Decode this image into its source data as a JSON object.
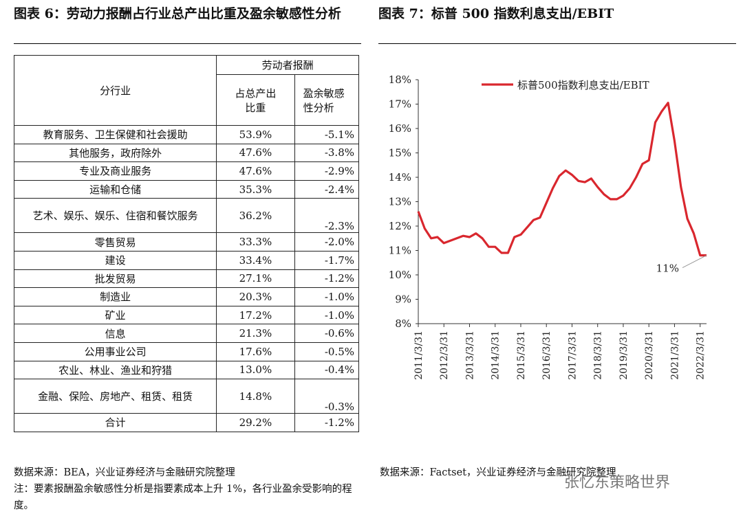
{
  "left_figure": {
    "title": "图表 6：劳动力报酬占行业总产出比重及盈余敏感性分析",
    "table": {
      "col_industry": "分行业",
      "group_header": "劳动者报酬",
      "col_share": "占总产出比重",
      "col_sensitivity": "盈余敏感性分析",
      "rows": [
        {
          "industry": "教育服务、卫生保健和社会援助",
          "share": "53.9%",
          "sensitivity": "-5.1%"
        },
        {
          "industry": "其他服务，政府除外",
          "share": "47.6%",
          "sensitivity": "-3.8%"
        },
        {
          "industry": "专业及商业服务",
          "share": "47.6%",
          "sensitivity": "-2.9%"
        },
        {
          "industry": "运输和仓储",
          "share": "35.3%",
          "sensitivity": "-2.4%"
        },
        {
          "industry": "艺术、娱乐、娱乐、住宿和餐饮服务",
          "share": "36.2%",
          "sensitivity": "-2.3%"
        },
        {
          "industry": "零售贸易",
          "share": "33.3%",
          "sensitivity": "-2.0%"
        },
        {
          "industry": "建设",
          "share": "33.4%",
          "sensitivity": "-1.7%"
        },
        {
          "industry": "批发贸易",
          "share": "27.1%",
          "sensitivity": "-1.2%"
        },
        {
          "industry": "制造业",
          "share": "20.3%",
          "sensitivity": "-1.0%"
        },
        {
          "industry": "矿业",
          "share": "17.2%",
          "sensitivity": "-1.0%"
        },
        {
          "industry": "信息",
          "share": "21.3%",
          "sensitivity": "-0.6%"
        },
        {
          "industry": "公用事业公司",
          "share": "17.6%",
          "sensitivity": "-0.5%"
        },
        {
          "industry": "农业、林业、渔业和狩猎",
          "share": "13.0%",
          "sensitivity": "-0.4%"
        },
        {
          "industry": "金融、保险、房地产、租赁、租赁",
          "share": "14.8%",
          "sensitivity": "-0.3%"
        },
        {
          "industry": "合计",
          "share": "29.2%",
          "sensitivity": "-1.2%"
        }
      ]
    },
    "source": "数据来源：BEA，兴业证券经济与金融研究院整理",
    "note": "注：要素报酬盈余敏感性分析是指要素成本上升 1%，各行业盈余受影响的程度。"
  },
  "right_figure": {
    "title": "图表 7：标普 500 指数利息支出/EBIT",
    "source": "数据来源：Factset，兴业证券经济与金融研究院整理"
  },
  "watermark": "张忆东策略世界",
  "chart_data": {
    "type": "line",
    "title": "",
    "legend": [
      "标普500指数利息支出/EBIT"
    ],
    "legend_position": "top-right",
    "xlabel": "",
    "ylabel": "",
    "ylim": [
      8,
      18
    ],
    "yticks": [
      "8%",
      "9%",
      "10%",
      "11%",
      "12%",
      "13%",
      "14%",
      "15%",
      "16%",
      "17%",
      "18%"
    ],
    "xticks": [
      "2011/3/31",
      "2012/3/31",
      "2013/3/31",
      "2014/3/31",
      "2015/3/31",
      "2016/3/31",
      "2017/3/31",
      "2018/3/31",
      "2019/3/31",
      "2020/3/31",
      "2021/3/31",
      "2022/3/31"
    ],
    "x_start": 2011.0,
    "x_end": 2022.25,
    "series": [
      {
        "name": "标普500指数利息支出/EBIT",
        "color": "#d9272e",
        "x": [
          2011.0,
          2011.25,
          2011.5,
          2011.75,
          2012.0,
          2012.25,
          2012.5,
          2012.75,
          2013.0,
          2013.25,
          2013.5,
          2013.75,
          2014.0,
          2014.25,
          2014.5,
          2014.75,
          2015.0,
          2015.25,
          2015.5,
          2015.75,
          2016.0,
          2016.25,
          2016.5,
          2016.75,
          2017.0,
          2017.25,
          2017.5,
          2017.75,
          2018.0,
          2018.25,
          2018.5,
          2018.75,
          2019.0,
          2019.25,
          2019.5,
          2019.75,
          2020.0,
          2020.25,
          2020.5,
          2020.75,
          2021.0,
          2021.25,
          2021.5,
          2021.75,
          2022.0,
          2022.25
        ],
        "values": [
          12.6,
          11.9,
          11.5,
          11.55,
          11.3,
          11.4,
          11.5,
          11.6,
          11.55,
          11.7,
          11.5,
          11.15,
          11.15,
          10.9,
          10.9,
          11.55,
          11.65,
          11.95,
          12.25,
          12.35,
          12.95,
          13.55,
          14.05,
          14.28,
          14.1,
          13.85,
          13.8,
          13.95,
          13.6,
          13.3,
          13.1,
          13.1,
          13.25,
          13.55,
          14.0,
          14.55,
          14.7,
          16.25,
          16.7,
          17.05,
          15.5,
          13.6,
          12.3,
          11.7,
          10.8,
          10.8
        ],
        "end_label": "11%"
      }
    ]
  }
}
